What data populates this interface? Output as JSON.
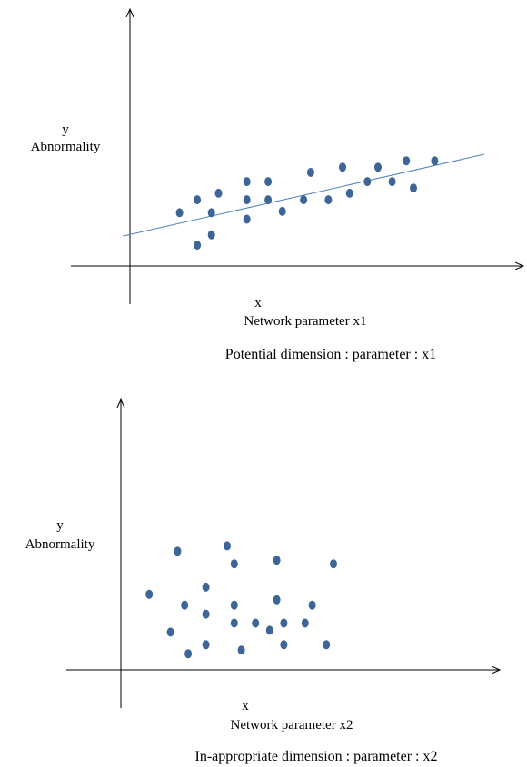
{
  "colors": {
    "point": "#3d6597",
    "trend": "#4f81bd",
    "axis": "#000000"
  },
  "chart_data": [
    {
      "type": "scatter",
      "ylabel": "y",
      "ylabel_sub": "Abnormality",
      "xlabel": "x",
      "xlabel_sub": "Network parameter x1",
      "caption": "Potential dimension : parameter : x1",
      "xlim": [
        0,
        10
      ],
      "ylim": [
        0,
        10
      ],
      "trendline": {
        "x": [
          -0.2,
          10
        ],
        "y": [
          2.3,
          8.6
        ]
      },
      "points": [
        {
          "x": 1.4,
          "y": 4.1
        },
        {
          "x": 1.9,
          "y": 1.6
        },
        {
          "x": 2.3,
          "y": 2.4
        },
        {
          "x": 1.9,
          "y": 5.1
        },
        {
          "x": 2.3,
          "y": 4.1
        },
        {
          "x": 2.5,
          "y": 5.6
        },
        {
          "x": 3.3,
          "y": 3.6
        },
        {
          "x": 3.3,
          "y": 5.1
        },
        {
          "x": 3.3,
          "y": 6.5
        },
        {
          "x": 3.9,
          "y": 5.1
        },
        {
          "x": 3.9,
          "y": 6.5
        },
        {
          "x": 4.3,
          "y": 4.2
        },
        {
          "x": 4.9,
          "y": 5.1
        },
        {
          "x": 5.1,
          "y": 7.2
        },
        {
          "x": 5.6,
          "y": 5.1
        },
        {
          "x": 6.0,
          "y": 7.6
        },
        {
          "x": 6.2,
          "y": 5.6
        },
        {
          "x": 6.7,
          "y": 6.5
        },
        {
          "x": 7.0,
          "y": 7.6
        },
        {
          "x": 7.4,
          "y": 6.5
        },
        {
          "x": 7.8,
          "y": 8.1
        },
        {
          "x": 8.0,
          "y": 6.0
        },
        {
          "x": 8.6,
          "y": 8.1
        }
      ]
    },
    {
      "type": "scatter",
      "ylabel": "y",
      "ylabel_sub": "Abnormality",
      "xlabel": "x",
      "xlabel_sub": "Network parameter x2",
      "caption": "In-appropriate dimension : parameter : x2",
      "xlim": [
        0,
        10
      ],
      "ylim": [
        0,
        10
      ],
      "points": [
        {
          "x": 0.8,
          "y": 4.2
        },
        {
          "x": 1.4,
          "y": 2.1
        },
        {
          "x": 1.6,
          "y": 6.6
        },
        {
          "x": 1.8,
          "y": 3.6
        },
        {
          "x": 1.9,
          "y": 0.9
        },
        {
          "x": 2.4,
          "y": 1.4
        },
        {
          "x": 2.4,
          "y": 3.1
        },
        {
          "x": 2.4,
          "y": 4.6
        },
        {
          "x": 3.0,
          "y": 6.9
        },
        {
          "x": 3.2,
          "y": 5.9
        },
        {
          "x": 3.2,
          "y": 3.6
        },
        {
          "x": 3.2,
          "y": 2.6
        },
        {
          "x": 3.4,
          "y": 1.1
        },
        {
          "x": 3.8,
          "y": 2.6
        },
        {
          "x": 4.2,
          "y": 2.2
        },
        {
          "x": 4.4,
          "y": 3.9
        },
        {
          "x": 4.4,
          "y": 6.1
        },
        {
          "x": 4.6,
          "y": 2.6
        },
        {
          "x": 4.6,
          "y": 1.4
        },
        {
          "x": 5.2,
          "y": 2.6
        },
        {
          "x": 5.4,
          "y": 3.6
        },
        {
          "x": 5.8,
          "y": 1.4
        },
        {
          "x": 6.0,
          "y": 5.9
        }
      ]
    }
  ]
}
